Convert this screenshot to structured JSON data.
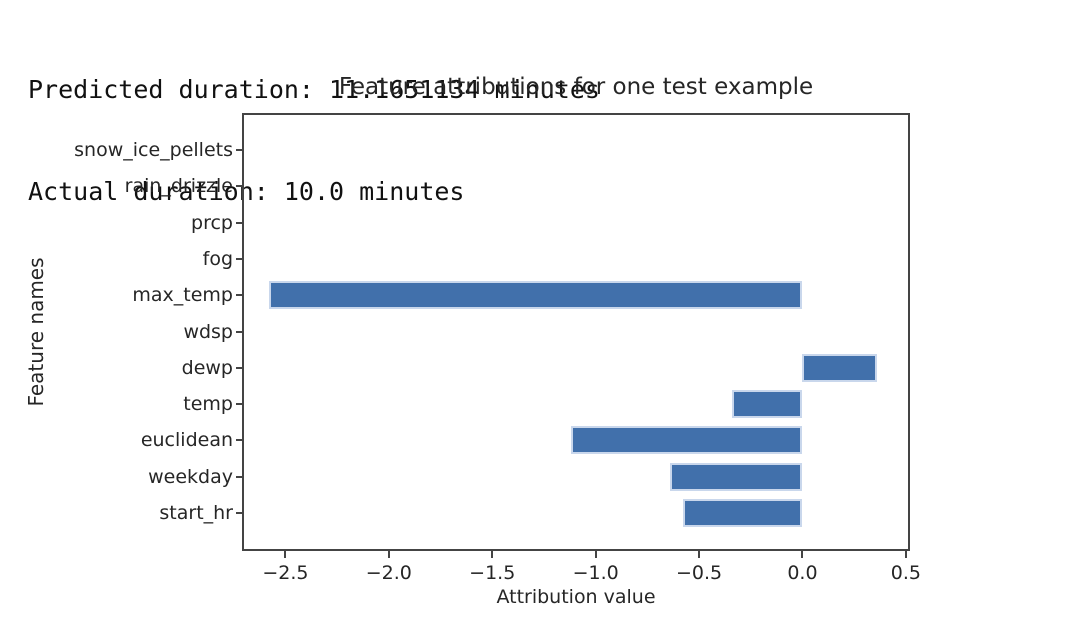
{
  "header": {
    "line1": "Predicted duration: 11.1651134 minutes",
    "line2": "Actual duration: 10.0 minutes"
  },
  "chart_data": {
    "type": "bar",
    "orientation": "horizontal",
    "title": "Feature attributions for one test example",
    "xlabel": "Attribution value",
    "ylabel": "Feature names",
    "categories_top_to_bottom": [
      "snow_ice_pellets",
      "rain_drizzle",
      "prcp",
      "fog",
      "max_temp",
      "wdsp",
      "dewp",
      "temp",
      "euclidean",
      "weekday",
      "start_hr"
    ],
    "values": [
      0,
      0,
      0,
      0,
      -2.58,
      0,
      0.36,
      -0.34,
      -1.12,
      -0.64,
      -0.58
    ],
    "xticks": [
      -2.5,
      -2.0,
      -1.5,
      -1.0,
      -0.5,
      0.0,
      0.5
    ],
    "xtick_labels": [
      "−2.5",
      "−2.0",
      "−1.5",
      "−1.0",
      "−0.5",
      "0.0",
      "0.5"
    ],
    "xlim": [
      -2.71,
      0.52
    ],
    "grid": false,
    "legend": null,
    "bar_color": "#4170ab",
    "bar_edge_color": "#c9d7ec",
    "frame_color": "#444444",
    "text_color": "#262626",
    "background_color": "#ffffff"
  }
}
